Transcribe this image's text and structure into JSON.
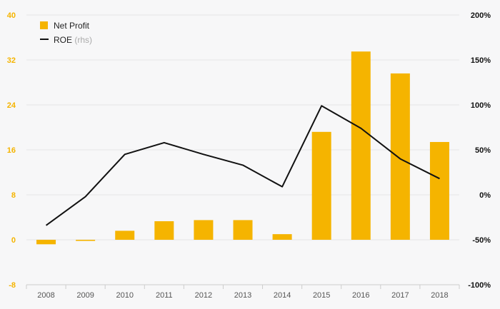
{
  "chart_data": {
    "type": "bar+line",
    "categories": [
      "2008",
      "2009",
      "2010",
      "2011",
      "2012",
      "2013",
      "2014",
      "2015",
      "2016",
      "2017",
      "2018"
    ],
    "series": [
      {
        "name": "Net Profit",
        "type": "bar",
        "axis": "left",
        "color": "#f5b400",
        "values": [
          -0.8,
          -0.2,
          1.6,
          3.3,
          3.5,
          3.5,
          1.0,
          19.2,
          33.5,
          29.6,
          17.4
        ]
      },
      {
        "name": "ROE",
        "name_note": "(rhs)",
        "type": "line",
        "axis": "right",
        "color": "#111111",
        "values": [
          -34,
          -2,
          45,
          58,
          45,
          33,
          9,
          99,
          74,
          40,
          18
        ]
      }
    ],
    "y_left": {
      "min": -8,
      "max": 40,
      "ticks": [
        "-8",
        "0",
        "8",
        "16",
        "24",
        "32",
        "40"
      ],
      "tick_values": [
        -8,
        0,
        8,
        16,
        24,
        32,
        40
      ]
    },
    "y_right": {
      "min": -100,
      "max": 200,
      "ticks": [
        "-100%",
        "-50%",
        "0%",
        "50%",
        "100%",
        "150%",
        "200%"
      ],
      "tick_values": [
        -100,
        -50,
        0,
        50,
        100,
        150,
        200
      ]
    },
    "grid": true,
    "legend_position": "top-left"
  }
}
